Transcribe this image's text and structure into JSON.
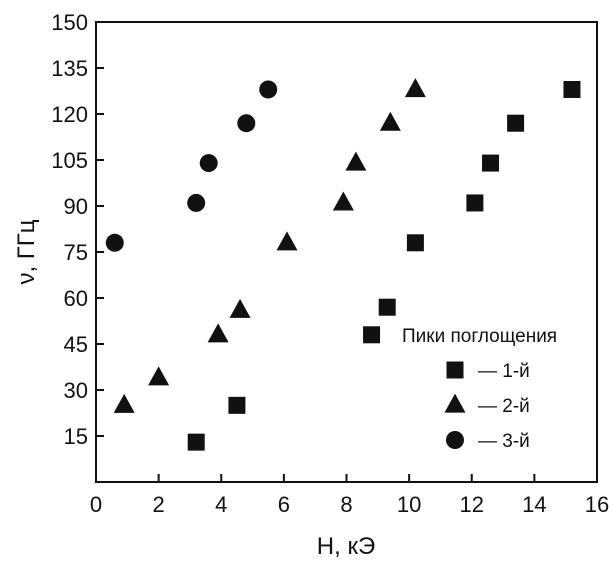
{
  "chart_data": {
    "type": "scatter",
    "xlabel": "H, кЭ",
    "ylabel": "ν, ГГц",
    "xlim": [
      0,
      16
    ],
    "ylim": [
      0,
      150
    ],
    "xticks": [
      "0",
      "2",
      "4",
      "6",
      "8",
      "10",
      "12",
      "14",
      "16"
    ],
    "yticks": [
      "15",
      "30",
      "45",
      "60",
      "75",
      "90",
      "105",
      "120",
      "135",
      "150"
    ],
    "grid": false,
    "legend": {
      "title": "Пики поглощения",
      "placement": "bottom-right"
    },
    "series": [
      {
        "name": "— 1-й",
        "marker": "square",
        "points": [
          {
            "x": 3.2,
            "y": 13
          },
          {
            "x": 4.5,
            "y": 25
          },
          {
            "x": 8.8,
            "y": 48
          },
          {
            "x": 9.3,
            "y": 57
          },
          {
            "x": 10.2,
            "y": 78
          },
          {
            "x": 12.1,
            "y": 91
          },
          {
            "x": 12.6,
            "y": 104
          },
          {
            "x": 13.4,
            "y": 117
          },
          {
            "x": 15.2,
            "y": 128
          }
        ]
      },
      {
        "name": "— 2-й",
        "marker": "triangle",
        "points": [
          {
            "x": 0.9,
            "y": 25
          },
          {
            "x": 2.0,
            "y": 34
          },
          {
            "x": 3.9,
            "y": 48
          },
          {
            "x": 4.6,
            "y": 56
          },
          {
            "x": 6.1,
            "y": 78
          },
          {
            "x": 7.9,
            "y": 91
          },
          {
            "x": 8.3,
            "y": 104
          },
          {
            "x": 9.4,
            "y": 117
          },
          {
            "x": 10.2,
            "y": 128
          }
        ]
      },
      {
        "name": "— 3-й",
        "marker": "circle",
        "points": [
          {
            "x": 0.6,
            "y": 78
          },
          {
            "x": 3.2,
            "y": 91
          },
          {
            "x": 3.6,
            "y": 104
          },
          {
            "x": 4.8,
            "y": 117
          },
          {
            "x": 5.5,
            "y": 128
          }
        ]
      }
    ],
    "marker_color": "#111111"
  }
}
